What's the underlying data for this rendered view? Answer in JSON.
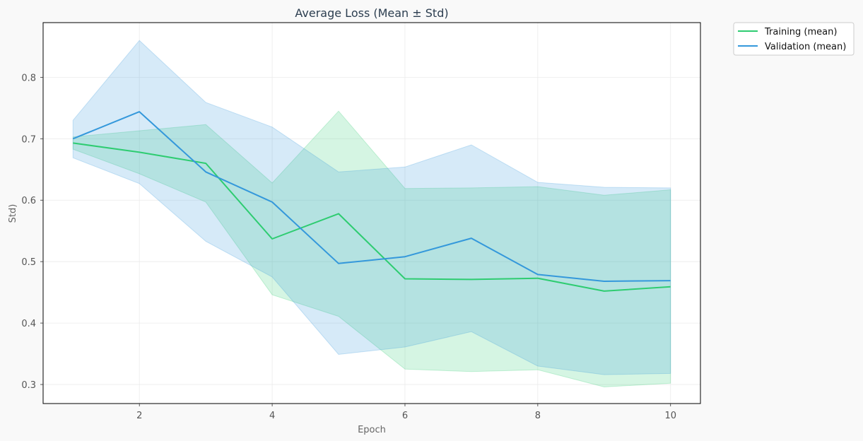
{
  "chart_data": {
    "type": "line",
    "title": "Average Loss (Mean ± Std)",
    "xlabel": "Epoch",
    "ylabel": "Std)",
    "xlim": [
      0.55,
      10.45
    ],
    "ylim": [
      0.269,
      0.889
    ],
    "xticks": [
      2,
      4,
      6,
      8,
      10
    ],
    "yticks": [
      0.3,
      0.4,
      0.5,
      0.6,
      0.7,
      0.8
    ],
    "grid": true,
    "legend_position": "outside top-right",
    "x": [
      1,
      2,
      3,
      4,
      5,
      6,
      7,
      8,
      9,
      10
    ],
    "series": [
      {
        "name": "Training (mean)",
        "color": "#2ecc71",
        "values": [
          0.693,
          0.678,
          0.66,
          0.537,
          0.578,
          0.472,
          0.471,
          0.473,
          0.452,
          0.459
        ],
        "upper": [
          0.703,
          0.713,
          0.723,
          0.628,
          0.745,
          0.619,
          0.62,
          0.622,
          0.608,
          0.617
        ],
        "lower": [
          0.683,
          0.643,
          0.597,
          0.446,
          0.411,
          0.325,
          0.321,
          0.324,
          0.296,
          0.302
        ]
      },
      {
        "name": "Validation (mean)",
        "color": "#3498db",
        "values": [
          0.7,
          0.744,
          0.646,
          0.597,
          0.497,
          0.508,
          0.538,
          0.479,
          0.468,
          0.469
        ],
        "upper": [
          0.73,
          0.86,
          0.759,
          0.719,
          0.646,
          0.654,
          0.69,
          0.629,
          0.621,
          0.62
        ],
        "lower": [
          0.669,
          0.627,
          0.533,
          0.475,
          0.349,
          0.361,
          0.386,
          0.33,
          0.316,
          0.318
        ]
      }
    ]
  }
}
